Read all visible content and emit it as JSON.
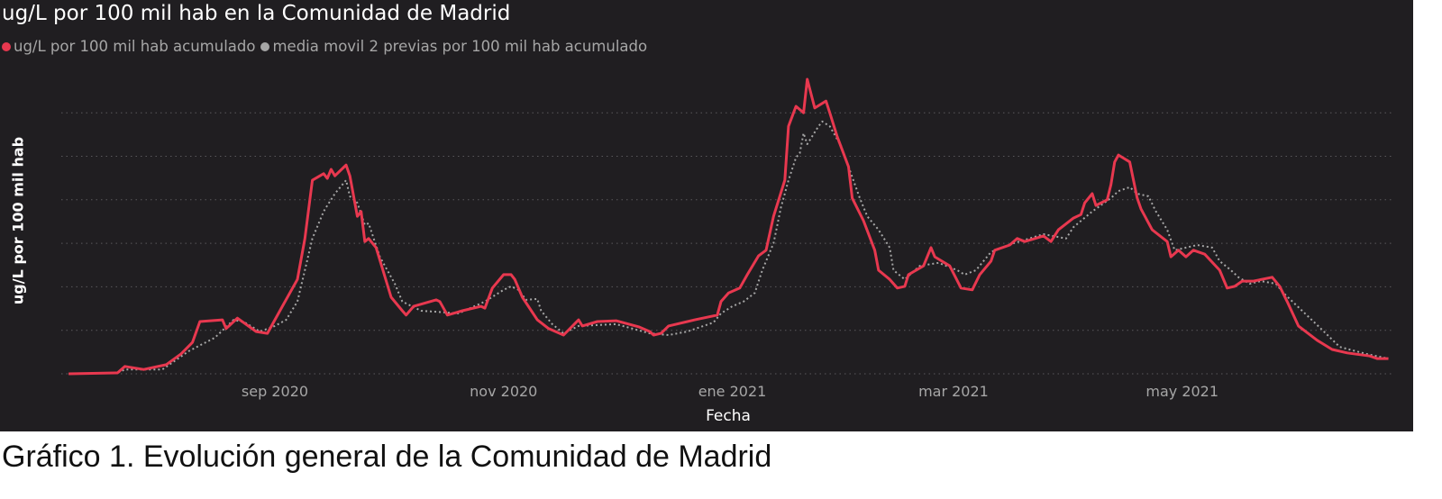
{
  "chart_data": {
    "type": "line",
    "title": "ug/L por 100 mil hab en la Comunidad de Madrid",
    "xlabel": "Fecha",
    "ylabel": "ug/L por 100 mil hab",
    "x_tick_labels": [
      {
        "label": "sep 2020",
        "date": "2020-09-01"
      },
      {
        "label": "nov 2020",
        "date": "2020-11-01"
      },
      {
        "label": "ene 2021",
        "date": "2021-01-01"
      },
      {
        "label": "mar 2021",
        "date": "2021-03-01"
      },
      {
        "label": "may 2021",
        "date": "2021-05-01"
      }
    ],
    "xlim": [
      "2020-07-08",
      "2021-06-25"
    ],
    "ylim": [
      0,
      7
    ],
    "y_tick_labels_shown": false,
    "grid": "horizontal dotted",
    "legend_position": "top-left",
    "background": "#201e21",
    "series": [
      {
        "name": "ug/L por 100 mil hab acumulado",
        "color": "#e8384f",
        "style": "solid",
        "points": [
          [
            "2020-07-08",
            0
          ],
          [
            "2020-07-21",
            0.02
          ],
          [
            "2020-07-23",
            0.17
          ],
          [
            "2020-07-28",
            0.1
          ],
          [
            "2020-08-03",
            0.21
          ],
          [
            "2020-08-07",
            0.46
          ],
          [
            "2020-08-10",
            0.72
          ],
          [
            "2020-08-12",
            1.2
          ],
          [
            "2020-08-18",
            1.24
          ],
          [
            "2020-08-19",
            1.04
          ],
          [
            "2020-08-22",
            1.28
          ],
          [
            "2020-08-27",
            0.97
          ],
          [
            "2020-08-30",
            0.93
          ],
          [
            "2020-09-03",
            1.55
          ],
          [
            "2020-09-07",
            2.17
          ],
          [
            "2020-09-09",
            3.11
          ],
          [
            "2020-09-11",
            4.45
          ],
          [
            "2020-09-14",
            4.6
          ],
          [
            "2020-09-15",
            4.49
          ],
          [
            "2020-09-16",
            4.7
          ],
          [
            "2020-09-17",
            4.55
          ],
          [
            "2020-09-20",
            4.8
          ],
          [
            "2020-09-21",
            4.55
          ],
          [
            "2020-09-23",
            3.62
          ],
          [
            "2020-09-24",
            3.73
          ],
          [
            "2020-09-25",
            3.04
          ],
          [
            "2020-09-26",
            3.11
          ],
          [
            "2020-09-28",
            2.9
          ],
          [
            "2020-10-02",
            1.76
          ],
          [
            "2020-10-05",
            1.45
          ],
          [
            "2020-10-06",
            1.35
          ],
          [
            "2020-10-08",
            1.55
          ],
          [
            "2020-10-14",
            1.7
          ],
          [
            "2020-10-15",
            1.66
          ],
          [
            "2020-10-17",
            1.35
          ],
          [
            "2020-10-21",
            1.45
          ],
          [
            "2020-10-26",
            1.55
          ],
          [
            "2020-10-27",
            1.51
          ],
          [
            "2020-10-29",
            1.97
          ],
          [
            "2020-11-01",
            2.28
          ],
          [
            "2020-11-03",
            2.28
          ],
          [
            "2020-11-04",
            2.17
          ],
          [
            "2020-11-06",
            1.76
          ],
          [
            "2020-11-10",
            1.24
          ],
          [
            "2020-11-13",
            1.04
          ],
          [
            "2020-11-17",
            0.89
          ],
          [
            "2020-11-21",
            1.24
          ],
          [
            "2020-11-22",
            1.1
          ],
          [
            "2020-11-26",
            1.2
          ],
          [
            "2020-12-01",
            1.22
          ],
          [
            "2020-12-07",
            1.08
          ],
          [
            "2020-12-10",
            0.97
          ],
          [
            "2020-12-11",
            0.89
          ],
          [
            "2020-12-13",
            0.93
          ],
          [
            "2020-12-15",
            1.1
          ],
          [
            "2020-12-22",
            1.24
          ],
          [
            "2020-12-28",
            1.35
          ],
          [
            "2020-12-29",
            1.66
          ],
          [
            "2020-12-31",
            1.86
          ],
          [
            "2021-01-03",
            1.97
          ],
          [
            "2021-01-05",
            2.28
          ],
          [
            "2021-01-08",
            2.71
          ],
          [
            "2021-01-10",
            2.84
          ],
          [
            "2021-01-12",
            3.62
          ],
          [
            "2021-01-15",
            4.45
          ],
          [
            "2021-01-16",
            5.69
          ],
          [
            "2021-01-18",
            6.15
          ],
          [
            "2021-01-20",
            6.0
          ],
          [
            "2021-01-21",
            6.77
          ],
          [
            "2021-01-23",
            6.11
          ],
          [
            "2021-01-26",
            6.27
          ],
          [
            "2021-01-27",
            6.0
          ],
          [
            "2021-01-29",
            5.45
          ],
          [
            "2021-02-01",
            4.76
          ],
          [
            "2021-02-02",
            4.04
          ],
          [
            "2021-02-05",
            3.52
          ],
          [
            "2021-02-08",
            2.84
          ],
          [
            "2021-02-09",
            2.38
          ],
          [
            "2021-02-12",
            2.17
          ],
          [
            "2021-02-14",
            1.97
          ],
          [
            "2021-02-16",
            2.01
          ],
          [
            "2021-02-17",
            2.28
          ],
          [
            "2021-02-21",
            2.48
          ],
          [
            "2021-02-23",
            2.9
          ],
          [
            "2021-02-24",
            2.69
          ],
          [
            "2021-02-28",
            2.48
          ],
          [
            "2021-03-03",
            1.97
          ],
          [
            "2021-03-06",
            1.93
          ],
          [
            "2021-03-08",
            2.28
          ],
          [
            "2021-03-11",
            2.59
          ],
          [
            "2021-03-12",
            2.84
          ],
          [
            "2021-03-16",
            2.96
          ],
          [
            "2021-03-18",
            3.11
          ],
          [
            "2021-03-20",
            3.04
          ],
          [
            "2021-03-25",
            3.17
          ],
          [
            "2021-03-27",
            3.04
          ],
          [
            "2021-03-29",
            3.31
          ],
          [
            "2021-04-02",
            3.58
          ],
          [
            "2021-04-04",
            3.66
          ],
          [
            "2021-04-05",
            3.93
          ],
          [
            "2021-04-07",
            4.14
          ],
          [
            "2021-04-08",
            3.87
          ],
          [
            "2021-04-11",
            4.0
          ],
          [
            "2021-04-12",
            4.35
          ],
          [
            "2021-04-13",
            4.87
          ],
          [
            "2021-04-14",
            5.03
          ],
          [
            "2021-04-17",
            4.87
          ],
          [
            "2021-04-19",
            4.04
          ],
          [
            "2021-04-20",
            3.79
          ],
          [
            "2021-04-23",
            3.31
          ],
          [
            "2021-04-27",
            3.04
          ],
          [
            "2021-04-28",
            2.69
          ],
          [
            "2021-04-30",
            2.84
          ],
          [
            "2021-05-02",
            2.69
          ],
          [
            "2021-05-04",
            2.84
          ],
          [
            "2021-05-07",
            2.75
          ],
          [
            "2021-05-11",
            2.38
          ],
          [
            "2021-05-13",
            1.97
          ],
          [
            "2021-05-15",
            2.01
          ],
          [
            "2021-05-17",
            2.13
          ],
          [
            "2021-05-20",
            2.13
          ],
          [
            "2021-05-25",
            2.22
          ],
          [
            "2021-05-27",
            2.01
          ],
          [
            "2021-05-29",
            1.66
          ],
          [
            "2021-06-01",
            1.1
          ],
          [
            "2021-06-06",
            0.77
          ],
          [
            "2021-06-10",
            0.56
          ],
          [
            "2021-06-14",
            0.48
          ],
          [
            "2021-06-20",
            0.41
          ],
          [
            "2021-06-22",
            0.35
          ],
          [
            "2021-06-25",
            0.35
          ]
        ]
      },
      {
        "name": "media movil 2 previas por 100 mil hab acumulado",
        "color": "#a6a6a6",
        "style": "dotted",
        "points": [
          [
            "2020-07-08",
            0
          ],
          [
            "2020-07-21",
            0.02
          ],
          [
            "2020-07-23",
            0.1
          ],
          [
            "2020-08-02",
            0.1
          ],
          [
            "2020-08-09",
            0.52
          ],
          [
            "2020-08-16",
            0.83
          ],
          [
            "2020-08-21",
            1.24
          ],
          [
            "2020-08-24",
            1.18
          ],
          [
            "2020-08-28",
            0.97
          ],
          [
            "2020-09-01",
            1.1
          ],
          [
            "2020-09-04",
            1.24
          ],
          [
            "2020-09-07",
            1.66
          ],
          [
            "2020-09-09",
            2.38
          ],
          [
            "2020-09-11",
            3.11
          ],
          [
            "2020-09-14",
            3.73
          ],
          [
            "2020-09-15",
            3.87
          ],
          [
            "2020-09-17",
            4.14
          ],
          [
            "2020-09-20",
            4.45
          ],
          [
            "2020-09-21",
            4.08
          ],
          [
            "2020-09-23",
            3.93
          ],
          [
            "2020-09-25",
            3.42
          ],
          [
            "2020-09-26",
            3.46
          ],
          [
            "2020-09-29",
            2.69
          ],
          [
            "2020-10-03",
            2.07
          ],
          [
            "2020-10-05",
            1.66
          ],
          [
            "2020-10-10",
            1.45
          ],
          [
            "2020-10-20",
            1.39
          ],
          [
            "2020-10-27",
            1.66
          ],
          [
            "2020-11-01",
            1.93
          ],
          [
            "2020-11-03",
            2.01
          ],
          [
            "2020-11-05",
            1.93
          ],
          [
            "2020-11-07",
            1.7
          ],
          [
            "2020-11-10",
            1.72
          ],
          [
            "2020-11-11",
            1.45
          ],
          [
            "2020-11-14",
            1.14
          ],
          [
            "2020-11-17",
            0.93
          ],
          [
            "2020-11-21",
            1.1
          ],
          [
            "2020-12-01",
            1.14
          ],
          [
            "2020-12-10",
            0.93
          ],
          [
            "2020-12-15",
            0.89
          ],
          [
            "2020-12-20",
            0.97
          ],
          [
            "2020-12-27",
            1.18
          ],
          [
            "2020-12-29",
            1.39
          ],
          [
            "2021-01-01",
            1.55
          ],
          [
            "2021-01-04",
            1.66
          ],
          [
            "2021-01-07",
            1.86
          ],
          [
            "2021-01-09",
            2.38
          ],
          [
            "2021-01-12",
            3.0
          ],
          [
            "2021-01-14",
            3.83
          ],
          [
            "2021-01-16",
            4.45
          ],
          [
            "2021-01-18",
            4.97
          ],
          [
            "2021-01-19",
            5.07
          ],
          [
            "2021-01-20",
            5.53
          ],
          [
            "2021-01-21",
            5.28
          ],
          [
            "2021-01-24",
            5.69
          ],
          [
            "2021-01-25",
            5.8
          ],
          [
            "2021-01-27",
            5.69
          ],
          [
            "2021-01-30",
            5.24
          ],
          [
            "2021-02-01",
            4.76
          ],
          [
            "2021-02-04",
            4.04
          ],
          [
            "2021-02-06",
            3.62
          ],
          [
            "2021-02-09",
            3.31
          ],
          [
            "2021-02-12",
            2.9
          ],
          [
            "2021-02-13",
            2.38
          ],
          [
            "2021-02-16",
            2.17
          ],
          [
            "2021-02-20",
            2.48
          ],
          [
            "2021-02-25",
            2.55
          ],
          [
            "2021-03-02",
            2.38
          ],
          [
            "2021-03-04",
            2.28
          ],
          [
            "2021-03-07",
            2.38
          ],
          [
            "2021-03-11",
            2.8
          ],
          [
            "2021-03-17",
            3.0
          ],
          [
            "2021-03-25",
            3.21
          ],
          [
            "2021-03-31",
            3.11
          ],
          [
            "2021-04-02",
            3.37
          ],
          [
            "2021-04-07",
            3.73
          ],
          [
            "2021-04-12",
            4.04
          ],
          [
            "2021-04-14",
            4.2
          ],
          [
            "2021-04-17",
            4.29
          ],
          [
            "2021-04-19",
            4.14
          ],
          [
            "2021-04-22",
            4.08
          ],
          [
            "2021-04-24",
            3.73
          ],
          [
            "2021-04-27",
            3.31
          ],
          [
            "2021-04-29",
            2.84
          ],
          [
            "2021-05-02",
            2.9
          ],
          [
            "2021-05-05",
            2.96
          ],
          [
            "2021-05-09",
            2.9
          ],
          [
            "2021-05-11",
            2.59
          ],
          [
            "2021-05-14",
            2.38
          ],
          [
            "2021-05-16",
            2.22
          ],
          [
            "2021-05-19",
            2.07
          ],
          [
            "2021-05-22",
            2.13
          ],
          [
            "2021-05-26",
            2.07
          ],
          [
            "2021-05-28",
            1.86
          ],
          [
            "2021-06-02",
            1.45
          ],
          [
            "2021-06-07",
            1.04
          ],
          [
            "2021-06-12",
            0.62
          ],
          [
            "2021-06-19",
            0.46
          ],
          [
            "2021-06-25",
            0.35
          ]
        ]
      }
    ]
  },
  "caption": "Gráfico 1. Evolución general de la Comunidad de Madrid"
}
